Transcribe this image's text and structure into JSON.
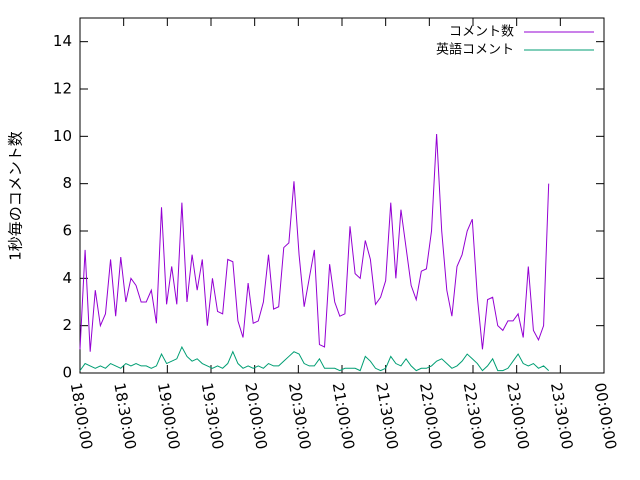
{
  "chart_data": {
    "type": "line",
    "ylabel": "1秒毎のコメント数",
    "x": [
      "18:00:00",
      "18:03:30",
      "18:07:00",
      "18:10:30",
      "18:14:00",
      "18:17:30",
      "18:21:00",
      "18:24:30",
      "18:28:00",
      "18:31:30",
      "18:35:00",
      "18:38:30",
      "18:42:00",
      "18:45:30",
      "18:49:00",
      "18:52:30",
      "18:56:00",
      "18:59:30",
      "19:03:00",
      "19:06:30",
      "19:10:00",
      "19:13:30",
      "19:17:00",
      "19:20:30",
      "19:24:00",
      "19:27:30",
      "19:31:00",
      "19:34:30",
      "19:38:00",
      "19:41:30",
      "19:45:00",
      "19:48:30",
      "19:52:00",
      "19:55:30",
      "19:59:00",
      "20:02:30",
      "20:06:00",
      "20:09:30",
      "20:13:00",
      "20:16:30",
      "20:20:00",
      "20:23:30",
      "20:27:00",
      "20:30:30",
      "20:34:00",
      "20:37:30",
      "20:41:00",
      "20:44:30",
      "20:48:00",
      "20:51:30",
      "20:55:00",
      "20:58:30",
      "21:02:00",
      "21:05:30",
      "21:09:00",
      "21:12:30",
      "21:16:00",
      "21:19:30",
      "21:23:00",
      "21:26:30",
      "21:30:00",
      "21:33:30",
      "21:37:00",
      "21:40:30",
      "21:44:00",
      "21:47:30",
      "21:51:00",
      "21:54:30",
      "21:58:00",
      "22:01:30",
      "22:05:00",
      "22:08:30",
      "22:12:00",
      "22:15:30",
      "22:19:00",
      "22:22:30",
      "22:26:00",
      "22:29:30",
      "22:33:00",
      "22:36:30",
      "22:40:00",
      "22:43:30",
      "22:47:00",
      "22:50:30",
      "22:54:00",
      "22:57:30",
      "23:01:00",
      "23:04:30",
      "23:08:00",
      "23:11:30",
      "23:15:00",
      "23:18:30",
      "23:22:00"
    ],
    "series": [
      {
        "name": "コメント数",
        "color": "#9400d3",
        "values": [
          1.0,
          5.2,
          0.9,
          3.5,
          2.0,
          2.5,
          4.8,
          2.4,
          4.9,
          3.0,
          4.0,
          3.7,
          3.0,
          3.0,
          3.5,
          2.1,
          7.0,
          2.9,
          4.5,
          2.9,
          7.2,
          3.0,
          5.0,
          3.5,
          4.8,
          2.0,
          4.0,
          2.6,
          2.5,
          4.8,
          4.7,
          2.2,
          1.5,
          3.8,
          2.1,
          2.2,
          3.0,
          5.0,
          2.7,
          2.8,
          5.3,
          5.5,
          8.1,
          5.0,
          2.8,
          4.0,
          5.2,
          1.2,
          1.1,
          4.6,
          3.0,
          2.4,
          2.5,
          6.2,
          4.2,
          4.0,
          5.6,
          4.8,
          2.9,
          3.2,
          3.9,
          7.2,
          4.0,
          6.9,
          5.3,
          3.7,
          3.1,
          4.3,
          4.4,
          6.0,
          10.1,
          6.0,
          3.5,
          2.4,
          4.5,
          5.0,
          6.0,
          6.5,
          3.2,
          1.0,
          3.1,
          3.2,
          2.0,
          1.8,
          2.2,
          2.2,
          2.5,
          1.5,
          4.5,
          1.8,
          1.4,
          2.0,
          8.0
        ]
      },
      {
        "name": "英語コメント",
        "color": "#009e73",
        "values": [
          0.1,
          0.4,
          0.3,
          0.2,
          0.3,
          0.2,
          0.4,
          0.3,
          0.2,
          0.4,
          0.3,
          0.4,
          0.3,
          0.3,
          0.2,
          0.3,
          0.8,
          0.4,
          0.5,
          0.6,
          1.1,
          0.7,
          0.5,
          0.6,
          0.4,
          0.3,
          0.2,
          0.3,
          0.2,
          0.4,
          0.9,
          0.4,
          0.2,
          0.3,
          0.2,
          0.3,
          0.2,
          0.4,
          0.3,
          0.3,
          0.5,
          0.7,
          0.9,
          0.8,
          0.4,
          0.3,
          0.3,
          0.6,
          0.2,
          0.2,
          0.2,
          0.1,
          0.2,
          0.2,
          0.2,
          0.1,
          0.7,
          0.5,
          0.2,
          0.1,
          0.2,
          0.7,
          0.4,
          0.3,
          0.6,
          0.3,
          0.1,
          0.2,
          0.2,
          0.3,
          0.5,
          0.6,
          0.4,
          0.2,
          0.3,
          0.5,
          0.8,
          0.6,
          0.4,
          0.1,
          0.3,
          0.6,
          0.1,
          0.1,
          0.2,
          0.5,
          0.8,
          0.4,
          0.3,
          0.4,
          0.2,
          0.3,
          0.1
        ]
      }
    ],
    "xlim": [
      "18:00:00",
      "00:00:00"
    ],
    "xticks": [
      "18:00:00",
      "18:30:00",
      "19:00:00",
      "19:30:00",
      "20:00:00",
      "20:30:00",
      "21:00:00",
      "21:30:00",
      "22:00:00",
      "22:30:00",
      "23:00:00",
      "23:30:00",
      "00:00:00"
    ],
    "ylim": [
      0,
      15
    ],
    "yticks": [
      0,
      2,
      4,
      6,
      8,
      10,
      12,
      14
    ],
    "legend": "top-right"
  }
}
